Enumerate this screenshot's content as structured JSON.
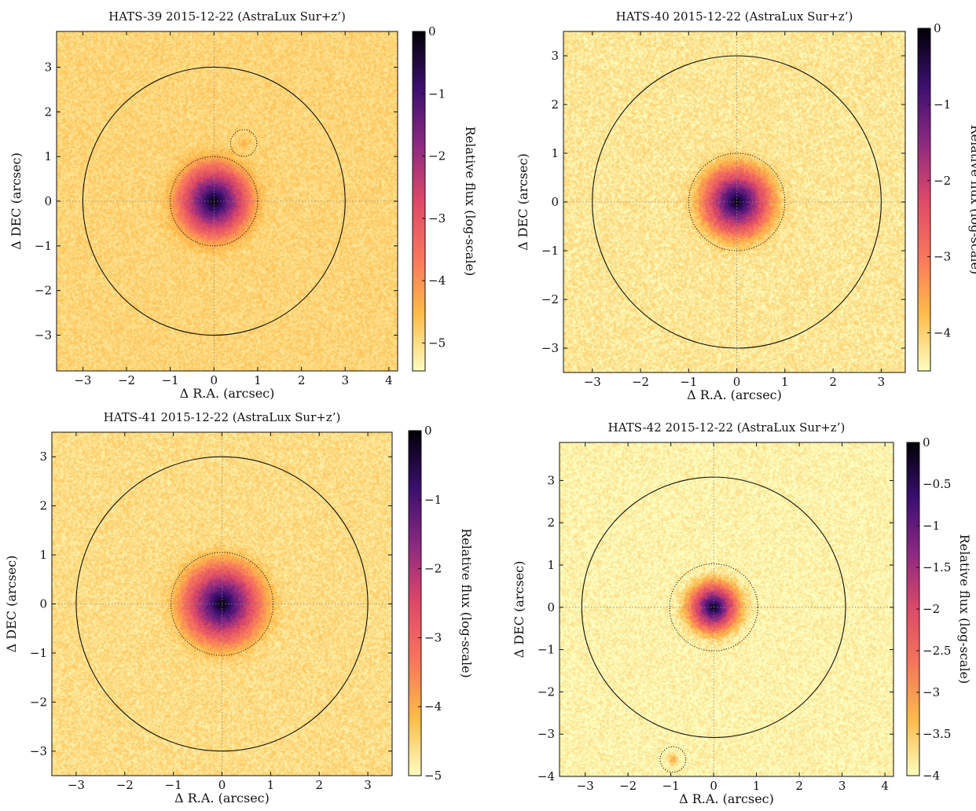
{
  "figure": {
    "background": "#ffffff",
    "colormap": [
      "#000004",
      "#3b0f70",
      "#8c2981",
      "#dd4968",
      "#f8765c",
      "#febb4a",
      "#fcfdbf"
    ]
  },
  "chart_data": [
    {
      "type": "heatmap",
      "title": "HATS-39 2015-12-22 (AstraLux Sur+z’)",
      "xlabel": "Δ R.A. (arcsec)",
      "ylabel": "Δ DEC (arcsec)",
      "colorbar_label": "Relative flux (log-scale)",
      "xlim": [
        -3.6,
        4.2
      ],
      "ylim": [
        -3.8,
        3.8
      ],
      "xticks": [
        -3,
        -2,
        -1,
        0,
        1,
        2,
        3,
        4
      ],
      "yticks": [
        -3,
        -2,
        -1,
        0,
        1,
        2,
        3
      ],
      "clim": [
        -5.45,
        0
      ],
      "colorbar_ticks": [
        0,
        -1,
        -2,
        -3,
        -4,
        -5
      ],
      "background_level": -4.9,
      "star_center": [
        0,
        0
      ],
      "star_width": 0.2,
      "circles": [
        {
          "x": 0,
          "y": 0,
          "r": 3.0,
          "style": "solid"
        },
        {
          "x": 0,
          "y": 0,
          "r": 1.0,
          "style": "dotted"
        },
        {
          "x": 0.68,
          "y": 1.3,
          "r": 0.3,
          "style": "dotted"
        }
      ],
      "companions": [
        {
          "x": 0.68,
          "y": 1.3,
          "level": -4.55
        }
      ]
    },
    {
      "type": "heatmap",
      "title": "HATS-40 2015-12-22 (AstraLux Sur+z’)",
      "xlabel": "Δ R.A. (arcsec)",
      "ylabel": "Δ DEC (arcsec)",
      "colorbar_label": "Relative flux (log-scale)",
      "xlim": [
        -3.6,
        3.5
      ],
      "ylim": [
        -3.5,
        3.5
      ],
      "xticks": [
        -3,
        -2,
        -1,
        0,
        1,
        2,
        3
      ],
      "yticks": [
        -3,
        -2,
        -1,
        0,
        1,
        2,
        3
      ],
      "clim": [
        -4.5,
        0
      ],
      "colorbar_ticks": [
        0,
        -1,
        -2,
        -3,
        -4
      ],
      "background_level": -4.25,
      "star_center": [
        0,
        0
      ],
      "star_width": 0.2,
      "circles": [
        {
          "x": 0,
          "y": 0,
          "r": 3.0,
          "style": "solid"
        },
        {
          "x": 0,
          "y": 0,
          "r": 1.0,
          "style": "dotted"
        }
      ],
      "companions": []
    },
    {
      "type": "heatmap",
      "title": "HATS-41 2015-12-22 (AstraLux Sur+z’)",
      "xlabel": "Δ R.A. (arcsec)",
      "ylabel": "Δ DEC (arcsec)",
      "colorbar_label": "Relative flux (log-scale)",
      "xlim": [
        -3.5,
        3.5
      ],
      "ylim": [
        -3.5,
        3.5
      ],
      "xticks": [
        -3,
        -2,
        -1,
        0,
        1,
        2,
        3
      ],
      "yticks": [
        -3,
        -2,
        -1,
        0,
        1,
        2,
        3
      ],
      "clim": [
        -5,
        0
      ],
      "colorbar_ticks": [
        0,
        -1,
        -2,
        -3,
        -4,
        -5
      ],
      "background_level": -4.6,
      "star_center": [
        0,
        0
      ],
      "star_width": 0.21,
      "circles": [
        {
          "x": 0,
          "y": 0,
          "r": 3.0,
          "style": "solid"
        },
        {
          "x": 0,
          "y": 0,
          "r": 1.05,
          "style": "dotted"
        }
      ],
      "companions": []
    },
    {
      "type": "heatmap",
      "title": "HATS-42 2015-12-22 (AstraLux Sur+z’)",
      "xlabel": "Δ R.A. (arcsec)",
      "ylabel": "Δ DEC (arcsec)",
      "colorbar_label": "Relative flux (log-scale)",
      "xlim": [
        -3.6,
        4.2
      ],
      "ylim": [
        -4.0,
        3.9
      ],
      "xticks": [
        -3,
        -2,
        -1,
        0,
        1,
        2,
        3,
        4
      ],
      "yticks": [
        -4,
        -3,
        -2,
        -1,
        0,
        1,
        2,
        3
      ],
      "clim": [
        -4,
        0
      ],
      "colorbar_ticks": [
        0,
        -0.5,
        -1,
        -1.5,
        -2,
        -2.5,
        -3,
        -3.5,
        -4
      ],
      "background_level": -3.93,
      "star_center": [
        0,
        0
      ],
      "star_width": 0.18,
      "circles": [
        {
          "x": 0,
          "y": 0,
          "r": 3.08,
          "style": "solid"
        },
        {
          "x": 0,
          "y": 0,
          "r": 1.03,
          "style": "dotted"
        },
        {
          "x": -0.95,
          "y": -3.6,
          "r": 0.3,
          "style": "dotted"
        }
      ],
      "companions": [
        {
          "x": -0.95,
          "y": -3.6,
          "level": -3.3
        }
      ]
    }
  ]
}
